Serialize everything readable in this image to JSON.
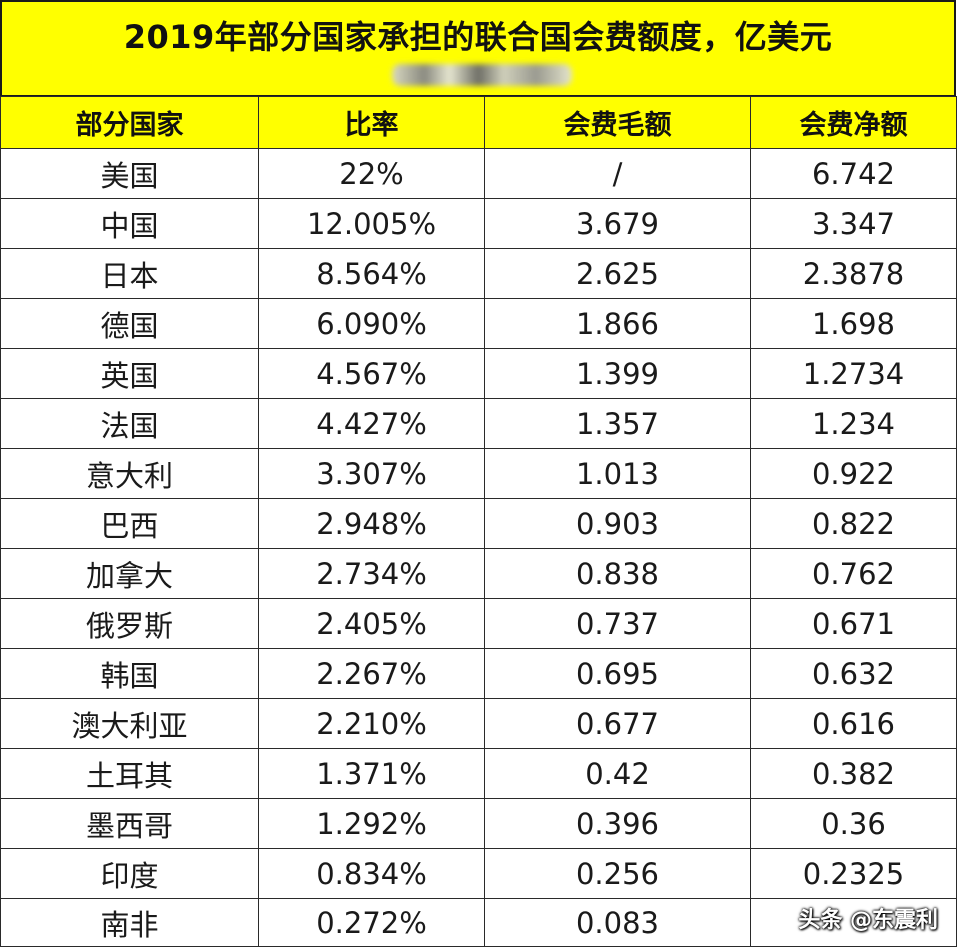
{
  "title": "2019年部分国家承担的联合国会费额度，亿美元",
  "headers": [
    "部分国家",
    "比率",
    "会费毛额",
    "会费净额"
  ],
  "rows": [
    [
      "美国",
      "22%",
      "/",
      "6.742"
    ],
    [
      "中国",
      "12.005%",
      "3.679",
      "3.347"
    ],
    [
      "日本",
      "8.564%",
      "2.625",
      "2.3878"
    ],
    [
      "德国",
      "6.090%",
      "1.866",
      "1.698"
    ],
    [
      "英国",
      "4.567%",
      "1.399",
      "1.2734"
    ],
    [
      "法国",
      "4.427%",
      "1.357",
      "1.234"
    ],
    [
      "意大利",
      "3.307%",
      "1.013",
      "0.922"
    ],
    [
      "巴西",
      "2.948%",
      "0.903",
      "0.822"
    ],
    [
      "加拿大",
      "2.734%",
      "0.838",
      "0.762"
    ],
    [
      "俄罗斯",
      "2.405%",
      "0.737",
      "0.671"
    ],
    [
      "韩国",
      "2.267%",
      "0.695",
      "0.632"
    ],
    [
      "澳大利亚",
      "2.210%",
      "0.677",
      "0.616"
    ],
    [
      "土耳其",
      "1.371%",
      "0.42",
      "0.382"
    ],
    [
      "墨西哥",
      "1.292%",
      "0.396",
      "0.36"
    ],
    [
      "印度",
      "0.834%",
      "0.256",
      "0.2325"
    ],
    [
      "南非",
      "0.272%",
      "0.083",
      ""
    ]
  ],
  "watermark": "头条 @东震利",
  "colors": {
    "header_bg": "#ffff00",
    "border": "#2a2a2a"
  }
}
